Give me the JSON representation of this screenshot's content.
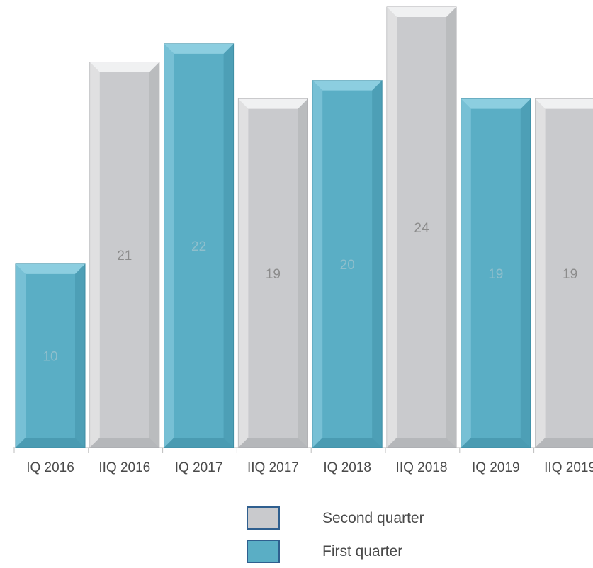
{
  "chart_data": {
    "type": "bar",
    "categories": [
      "IQ 2016",
      "IIQ 2016",
      "IQ 2017",
      "IIQ 2017",
      "IQ 2018",
      "IIQ 2018",
      "IQ 2019",
      "IIQ 2019"
    ],
    "values": [
      10,
      21,
      22,
      19,
      20,
      24,
      19,
      19
    ],
    "series_of_bar": [
      "First quarter",
      "Second quarter",
      "First quarter",
      "Second quarter",
      "First quarter",
      "Second quarter",
      "First quarter",
      "Second quarter"
    ],
    "ylim": [
      0,
      24
    ],
    "grid": false,
    "legend": {
      "placement": "bottom",
      "items": [
        {
          "name": "Second quarter",
          "color": "#c9cacd"
        },
        {
          "name": "First quarter",
          "color": "#5aaec5"
        }
      ]
    },
    "colors": {
      "First quarter": {
        "fill": "#5aaec5",
        "light": "#8fd0e2",
        "dark": "#3f8ea5",
        "label": "#8fbfcc"
      },
      "Second quarter": {
        "fill": "#c9cacd",
        "light": "#f2f2f3",
        "dark": "#a9aaad",
        "label": "#8c8c8c"
      }
    }
  }
}
